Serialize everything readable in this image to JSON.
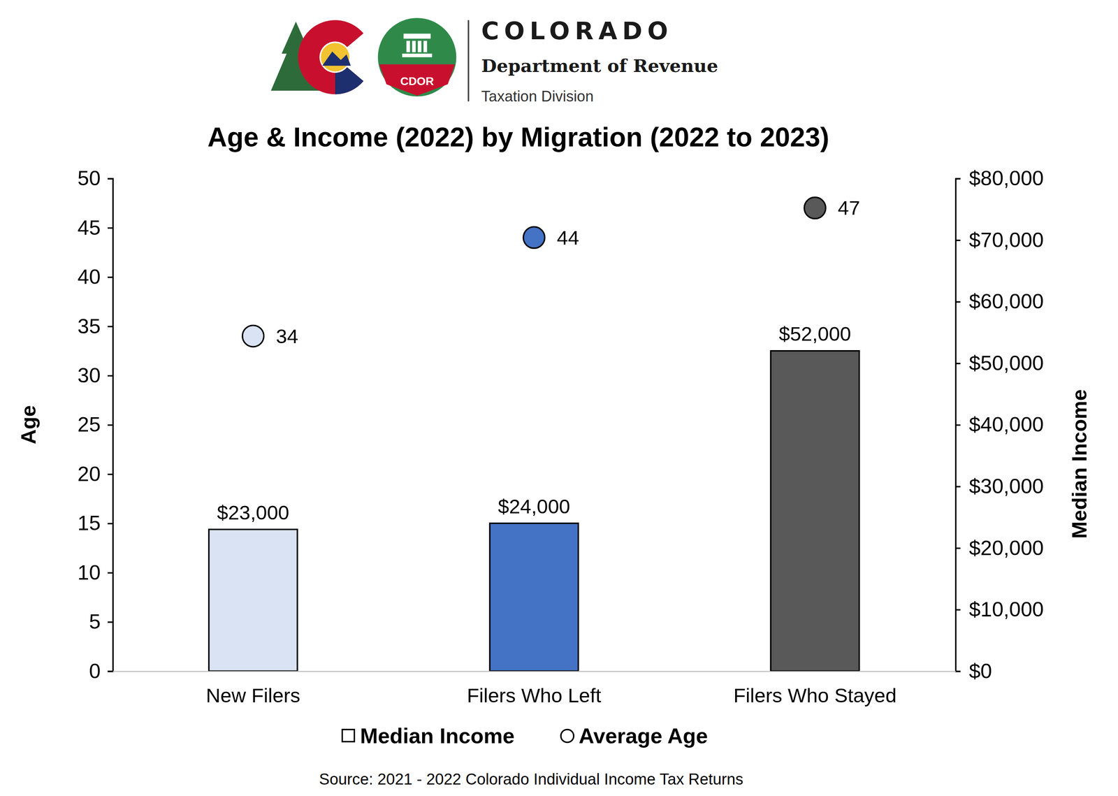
{
  "header": {
    "org": "COLORADO",
    "dept": "Department of Revenue",
    "division": "Taxation Division",
    "badge": "CDOR"
  },
  "chart_data": {
    "type": "bar",
    "title": "Age & Income (2022) by Migration (2022 to 2023)",
    "source": "Source: 2021 - 2022 Colorado Individual Income Tax Returns",
    "categories": [
      "New Filers",
      "Filers Who Left",
      "Filers Who Stayed"
    ],
    "ylabel": "Age",
    "y2label": "Median Income",
    "ylim": [
      0,
      50
    ],
    "yticks": [
      0,
      5,
      10,
      15,
      20,
      25,
      30,
      35,
      40,
      45,
      50
    ],
    "y2lim": [
      0,
      80000
    ],
    "y2ticks": [
      {
        "value": 0,
        "label": "$0"
      },
      {
        "value": 10000,
        "label": "$10,000"
      },
      {
        "value": 20000,
        "label": "$20,000"
      },
      {
        "value": 30000,
        "label": "$30,000"
      },
      {
        "value": 40000,
        "label": "$40,000"
      },
      {
        "value": 50000,
        "label": "$50,000"
      },
      {
        "value": 60000,
        "label": "$60,000"
      },
      {
        "value": 70000,
        "label": "$70,000"
      },
      {
        "value": 80000,
        "label": "$80,000"
      }
    ],
    "grid": false,
    "legend": "bottom",
    "data_labels": true,
    "series": [
      {
        "name": "Median Income",
        "type": "bar",
        "axis": "y2",
        "colors": [
          "#dae3f3",
          "#4472c4",
          "#595959"
        ],
        "values": [
          23000,
          24000,
          52000
        ],
        "value_labels": [
          "$23,000",
          "$24,000",
          "$52,000"
        ]
      },
      {
        "name": "Average Age",
        "type": "scatter",
        "marker": "circle",
        "colors": [
          "#dae3f3",
          "#4472c4",
          "#595959"
        ],
        "values": [
          34,
          44,
          47
        ]
      }
    ]
  }
}
